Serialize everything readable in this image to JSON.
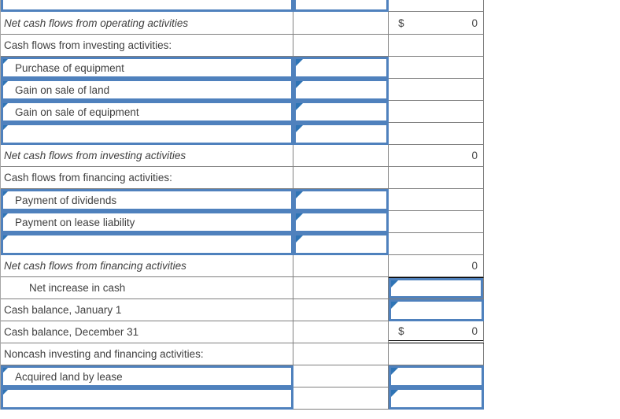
{
  "app": {
    "description": "Spreadsheet worksheet: statement of cash flows (partial view)",
    "columns": {
      "label_col": "description",
      "input_col": "answer input",
      "amount_col": "amount"
    }
  },
  "colors": {
    "input_border_blue": "#4F81BD",
    "marker_triangle_blue": "#2E74B5",
    "gridline_gray": "#7F7F7F",
    "text_gray": "#3F3F3F",
    "total_rule_black": "#000000",
    "background": "#FFFFFF"
  },
  "table": {
    "rows": [
      {
        "label": ""
      },
      {
        "label": "Net cash flows from operating activities",
        "currency": "$",
        "value": "0"
      },
      {
        "label": "Cash flows from investing activities:"
      },
      {
        "label": "Purchase of equipment"
      },
      {
        "label": "Gain on sale of land"
      },
      {
        "label": "Gain on sale of equipment"
      },
      {
        "label": ""
      },
      {
        "label": "Net cash flows from investing activities",
        "currency": "",
        "value": "0"
      },
      {
        "label": "Cash flows from financing activities:"
      },
      {
        "label": "Payment of dividends"
      },
      {
        "label": "Payment on lease liability"
      },
      {
        "label": ""
      },
      {
        "label": "Net cash flows from financing activities",
        "currency": "",
        "value": "0"
      },
      {
        "label": "Net increase in cash"
      },
      {
        "label": "Cash balance, January 1"
      },
      {
        "label": "Cash balance, December 31",
        "currency": "$",
        "value": "0"
      },
      {
        "label": "Noncash investing and financing activities:"
      },
      {
        "label": "Acquired land by lease"
      },
      {
        "label": ""
      }
    ]
  }
}
